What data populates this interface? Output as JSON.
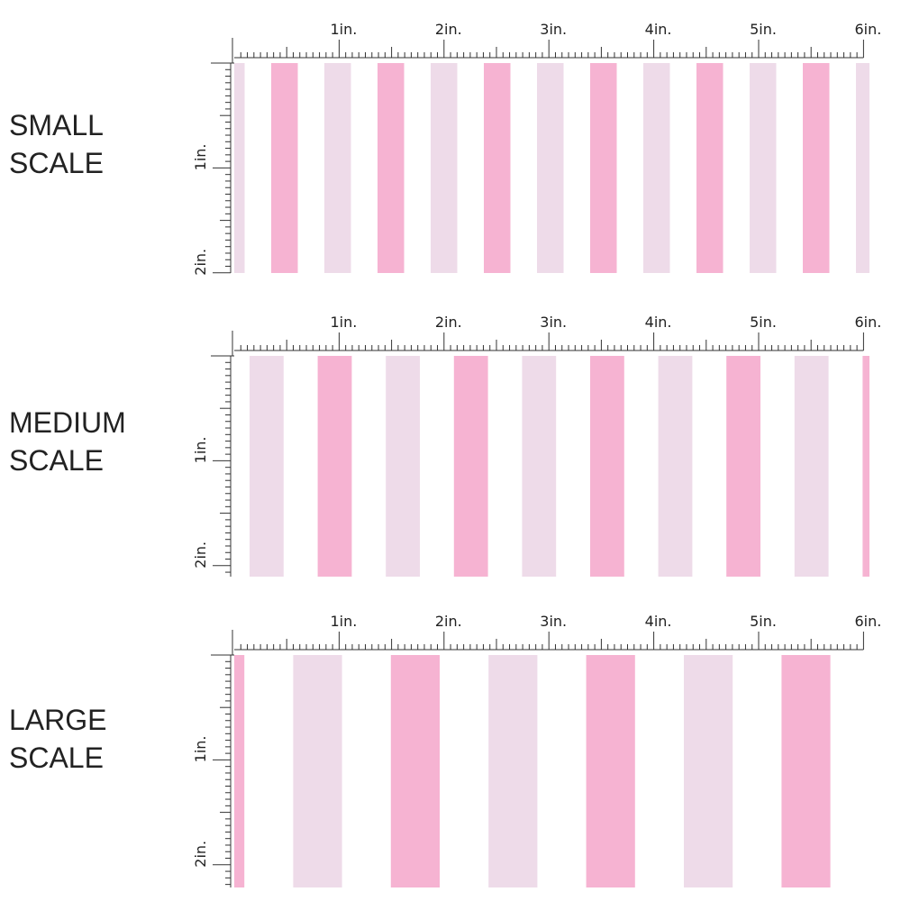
{
  "panels": [
    {
      "label": [
        "SMALL",
        "SCALE"
      ],
      "ruler_x": [
        "1in.",
        "2in.",
        "3in.",
        "4in.",
        "5in.",
        "6in."
      ],
      "ruler_y": [
        "1in.",
        "2in."
      ]
    },
    {
      "label": [
        "MEDIUM",
        "SCALE"
      ],
      "ruler_x": [
        "1in.",
        "2in.",
        "3in.",
        "4in.",
        "5in.",
        "6in."
      ],
      "ruler_y": [
        "1in.",
        "2in."
      ]
    },
    {
      "label": [
        "LARGE",
        "SCALE"
      ],
      "ruler_x": [
        "1in.",
        "2in.",
        "3in.",
        "4in.",
        "5in.",
        "6in."
      ],
      "ruler_y": [
        "1in.",
        "2in."
      ]
    }
  ]
}
